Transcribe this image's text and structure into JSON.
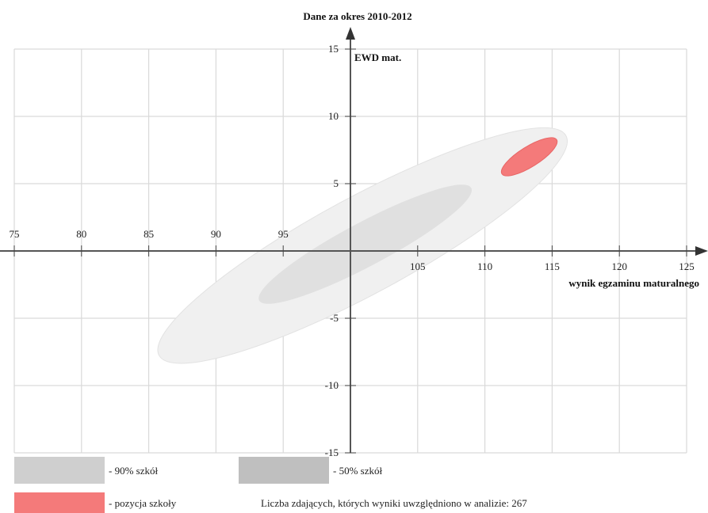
{
  "chart_data": {
    "type": "scatter",
    "title": "Dane za okres 2010-2012",
    "xlabel": "wynik egzaminu maturalnego",
    "ylabel": "EWD mat.",
    "xlim": [
      75,
      125
    ],
    "ylim": [
      -15,
      15
    ],
    "xticks": [
      75,
      80,
      85,
      90,
      95,
      105,
      110,
      115,
      120,
      125
    ],
    "yticks": [
      15,
      10,
      5,
      -5,
      -10,
      -15
    ],
    "grid": true,
    "regions": [
      {
        "name": "90% szkół",
        "cx": 100.9,
        "cy": 0.4,
        "rx": 17.2,
        "ry": 3.6,
        "angle": 28.4,
        "color": "#f0f0f0",
        "stroke": "#e2e2e2"
      },
      {
        "name": "50% szkół",
        "cx": 101.1,
        "cy": 0.5,
        "rx": 8.9,
        "ry": 1.6,
        "angle": 28.0,
        "color": "#e0e0e0",
        "stroke": "#e0e0e0"
      },
      {
        "name": "pozycja szkoły",
        "cx": 113.3,
        "cy": 7.0,
        "rx": 2.4,
        "ry": 0.75,
        "angle": 32.0,
        "color": "#f47a7a",
        "stroke": "#e86666"
      }
    ]
  },
  "legend": {
    "items": [
      {
        "label": "- 90% szkół",
        "color": "#cfcfcf"
      },
      {
        "label": "- 50% szkół",
        "color": "#bfbfbf"
      },
      {
        "label": "- pozycja szkoły",
        "color": "#f47a7a"
      }
    ],
    "note": "Liczba zdających, których wyniki uwzględniono w analizie: 267"
  }
}
